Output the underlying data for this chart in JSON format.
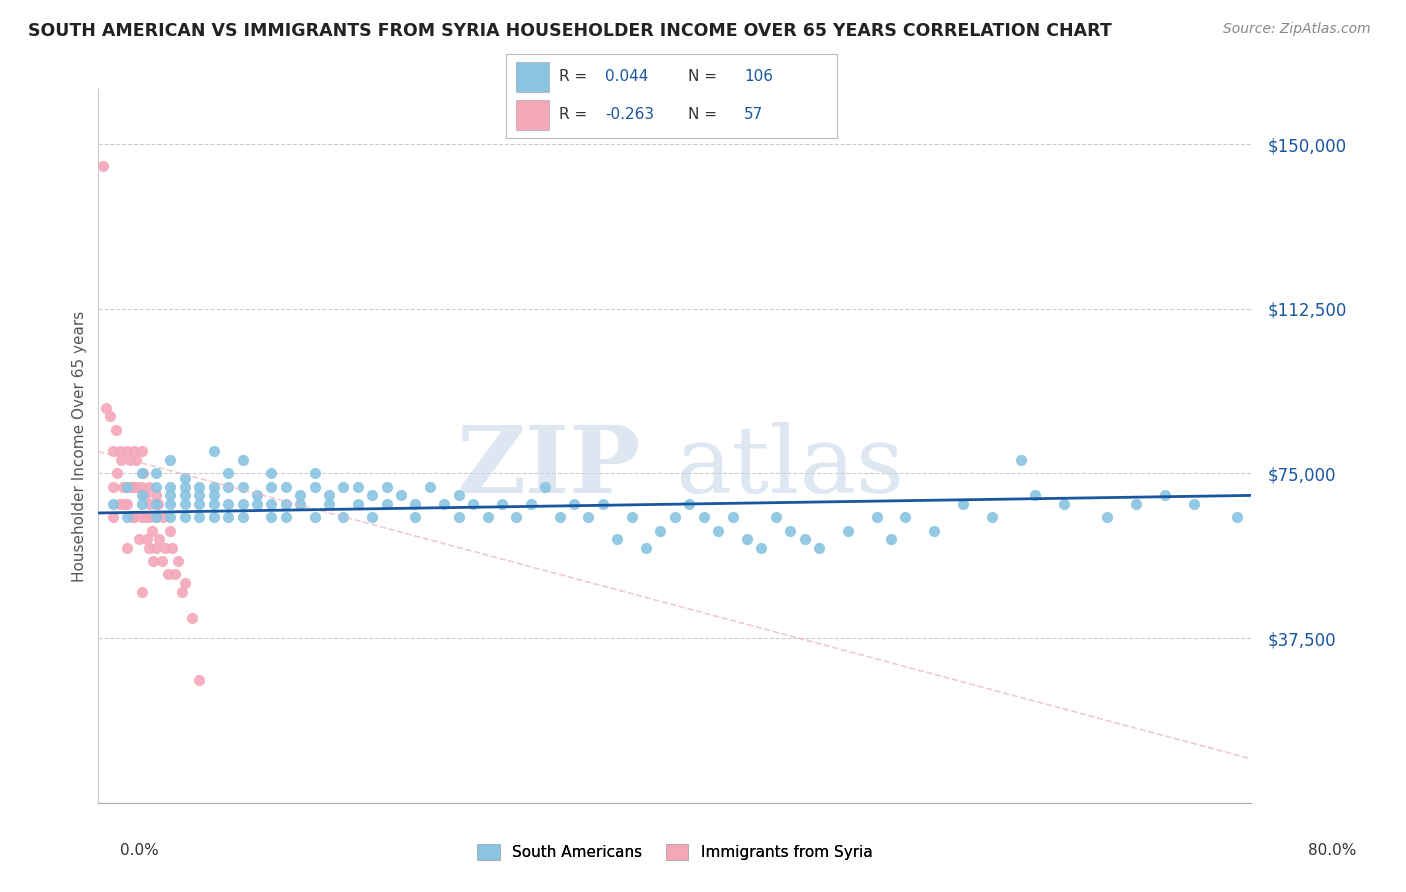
{
  "title": "SOUTH AMERICAN VS IMMIGRANTS FROM SYRIA HOUSEHOLDER INCOME OVER 65 YEARS CORRELATION CHART",
  "source": "Source: ZipAtlas.com",
  "ylabel": "Householder Income Over 65 years",
  "watermark": "ZIPatlas",
  "sa_color": "#89c4e1",
  "syria_color": "#f4a7b9",
  "trend_sa_color": "#1a56a0",
  "trend_syria_color": "#e8b4be",
  "xlim": [
    0.0,
    0.8
  ],
  "ylim": [
    0,
    162500
  ],
  "ytick_vals": [
    37500,
    75000,
    112500,
    150000
  ],
  "ytick_labels": [
    "$37,500",
    "$75,000",
    "$112,500",
    "$150,000"
  ],
  "legend_text_color": "#1a56a0",
  "legend_label_color": "#333333",
  "sa_x": [
    0.01,
    0.02,
    0.02,
    0.03,
    0.03,
    0.03,
    0.04,
    0.04,
    0.04,
    0.04,
    0.05,
    0.05,
    0.05,
    0.05,
    0.05,
    0.06,
    0.06,
    0.06,
    0.06,
    0.06,
    0.07,
    0.07,
    0.07,
    0.07,
    0.08,
    0.08,
    0.08,
    0.08,
    0.08,
    0.09,
    0.09,
    0.09,
    0.09,
    0.1,
    0.1,
    0.1,
    0.1,
    0.11,
    0.11,
    0.12,
    0.12,
    0.12,
    0.12,
    0.13,
    0.13,
    0.13,
    0.14,
    0.14,
    0.15,
    0.15,
    0.15,
    0.16,
    0.16,
    0.17,
    0.17,
    0.18,
    0.18,
    0.19,
    0.19,
    0.2,
    0.2,
    0.21,
    0.22,
    0.22,
    0.23,
    0.24,
    0.25,
    0.25,
    0.26,
    0.27,
    0.28,
    0.29,
    0.3,
    0.31,
    0.32,
    0.33,
    0.34,
    0.35,
    0.36,
    0.37,
    0.38,
    0.39,
    0.4,
    0.41,
    0.42,
    0.43,
    0.44,
    0.45,
    0.46,
    0.47,
    0.48,
    0.49,
    0.5,
    0.52,
    0.54,
    0.55,
    0.56,
    0.58,
    0.6,
    0.62,
    0.64,
    0.65,
    0.67,
    0.7,
    0.72,
    0.74,
    0.76,
    0.79
  ],
  "sa_y": [
    68000,
    72000,
    65000,
    75000,
    70000,
    68000,
    72000,
    68000,
    65000,
    75000,
    78000,
    70000,
    68000,
    65000,
    72000,
    74000,
    70000,
    68000,
    65000,
    72000,
    68000,
    72000,
    70000,
    65000,
    80000,
    72000,
    68000,
    65000,
    70000,
    72000,
    68000,
    65000,
    75000,
    72000,
    68000,
    65000,
    78000,
    70000,
    68000,
    75000,
    72000,
    68000,
    65000,
    72000,
    68000,
    65000,
    70000,
    68000,
    75000,
    72000,
    65000,
    70000,
    68000,
    72000,
    65000,
    68000,
    72000,
    70000,
    65000,
    72000,
    68000,
    70000,
    65000,
    68000,
    72000,
    68000,
    65000,
    70000,
    68000,
    65000,
    68000,
    65000,
    68000,
    72000,
    65000,
    68000,
    65000,
    68000,
    60000,
    65000,
    58000,
    62000,
    65000,
    68000,
    65000,
    62000,
    65000,
    60000,
    58000,
    65000,
    62000,
    60000,
    58000,
    62000,
    65000,
    60000,
    65000,
    62000,
    68000,
    65000,
    78000,
    70000,
    68000,
    65000,
    68000,
    70000,
    68000,
    65000
  ],
  "syria_x": [
    0.003,
    0.005,
    0.008,
    0.01,
    0.01,
    0.01,
    0.012,
    0.013,
    0.015,
    0.015,
    0.016,
    0.017,
    0.018,
    0.02,
    0.02,
    0.02,
    0.02,
    0.022,
    0.023,
    0.024,
    0.025,
    0.025,
    0.025,
    0.026,
    0.027,
    0.028,
    0.03,
    0.03,
    0.03,
    0.03,
    0.031,
    0.032,
    0.033,
    0.034,
    0.035,
    0.035,
    0.035,
    0.036,
    0.037,
    0.038,
    0.04,
    0.04,
    0.04,
    0.041,
    0.042,
    0.044,
    0.045,
    0.046,
    0.048,
    0.05,
    0.051,
    0.053,
    0.055,
    0.058,
    0.06,
    0.065,
    0.07
  ],
  "syria_y": [
    145000,
    90000,
    88000,
    80000,
    72000,
    65000,
    85000,
    75000,
    80000,
    68000,
    78000,
    72000,
    68000,
    80000,
    72000,
    68000,
    58000,
    78000,
    72000,
    65000,
    80000,
    72000,
    65000,
    78000,
    72000,
    60000,
    80000,
    72000,
    65000,
    48000,
    75000,
    70000,
    65000,
    60000,
    72000,
    65000,
    58000,
    68000,
    62000,
    55000,
    70000,
    65000,
    58000,
    68000,
    60000,
    55000,
    65000,
    58000,
    52000,
    62000,
    58000,
    52000,
    55000,
    48000,
    50000,
    42000,
    28000
  ],
  "trend_sa_x0": 0.0,
  "trend_sa_x1": 0.8,
  "trend_sa_y0": 66000,
  "trend_sa_y1": 70000,
  "trend_syria_x0": 0.0,
  "trend_syria_x1": 0.8,
  "trend_syria_y0": 80000,
  "trend_syria_y1": 10000
}
